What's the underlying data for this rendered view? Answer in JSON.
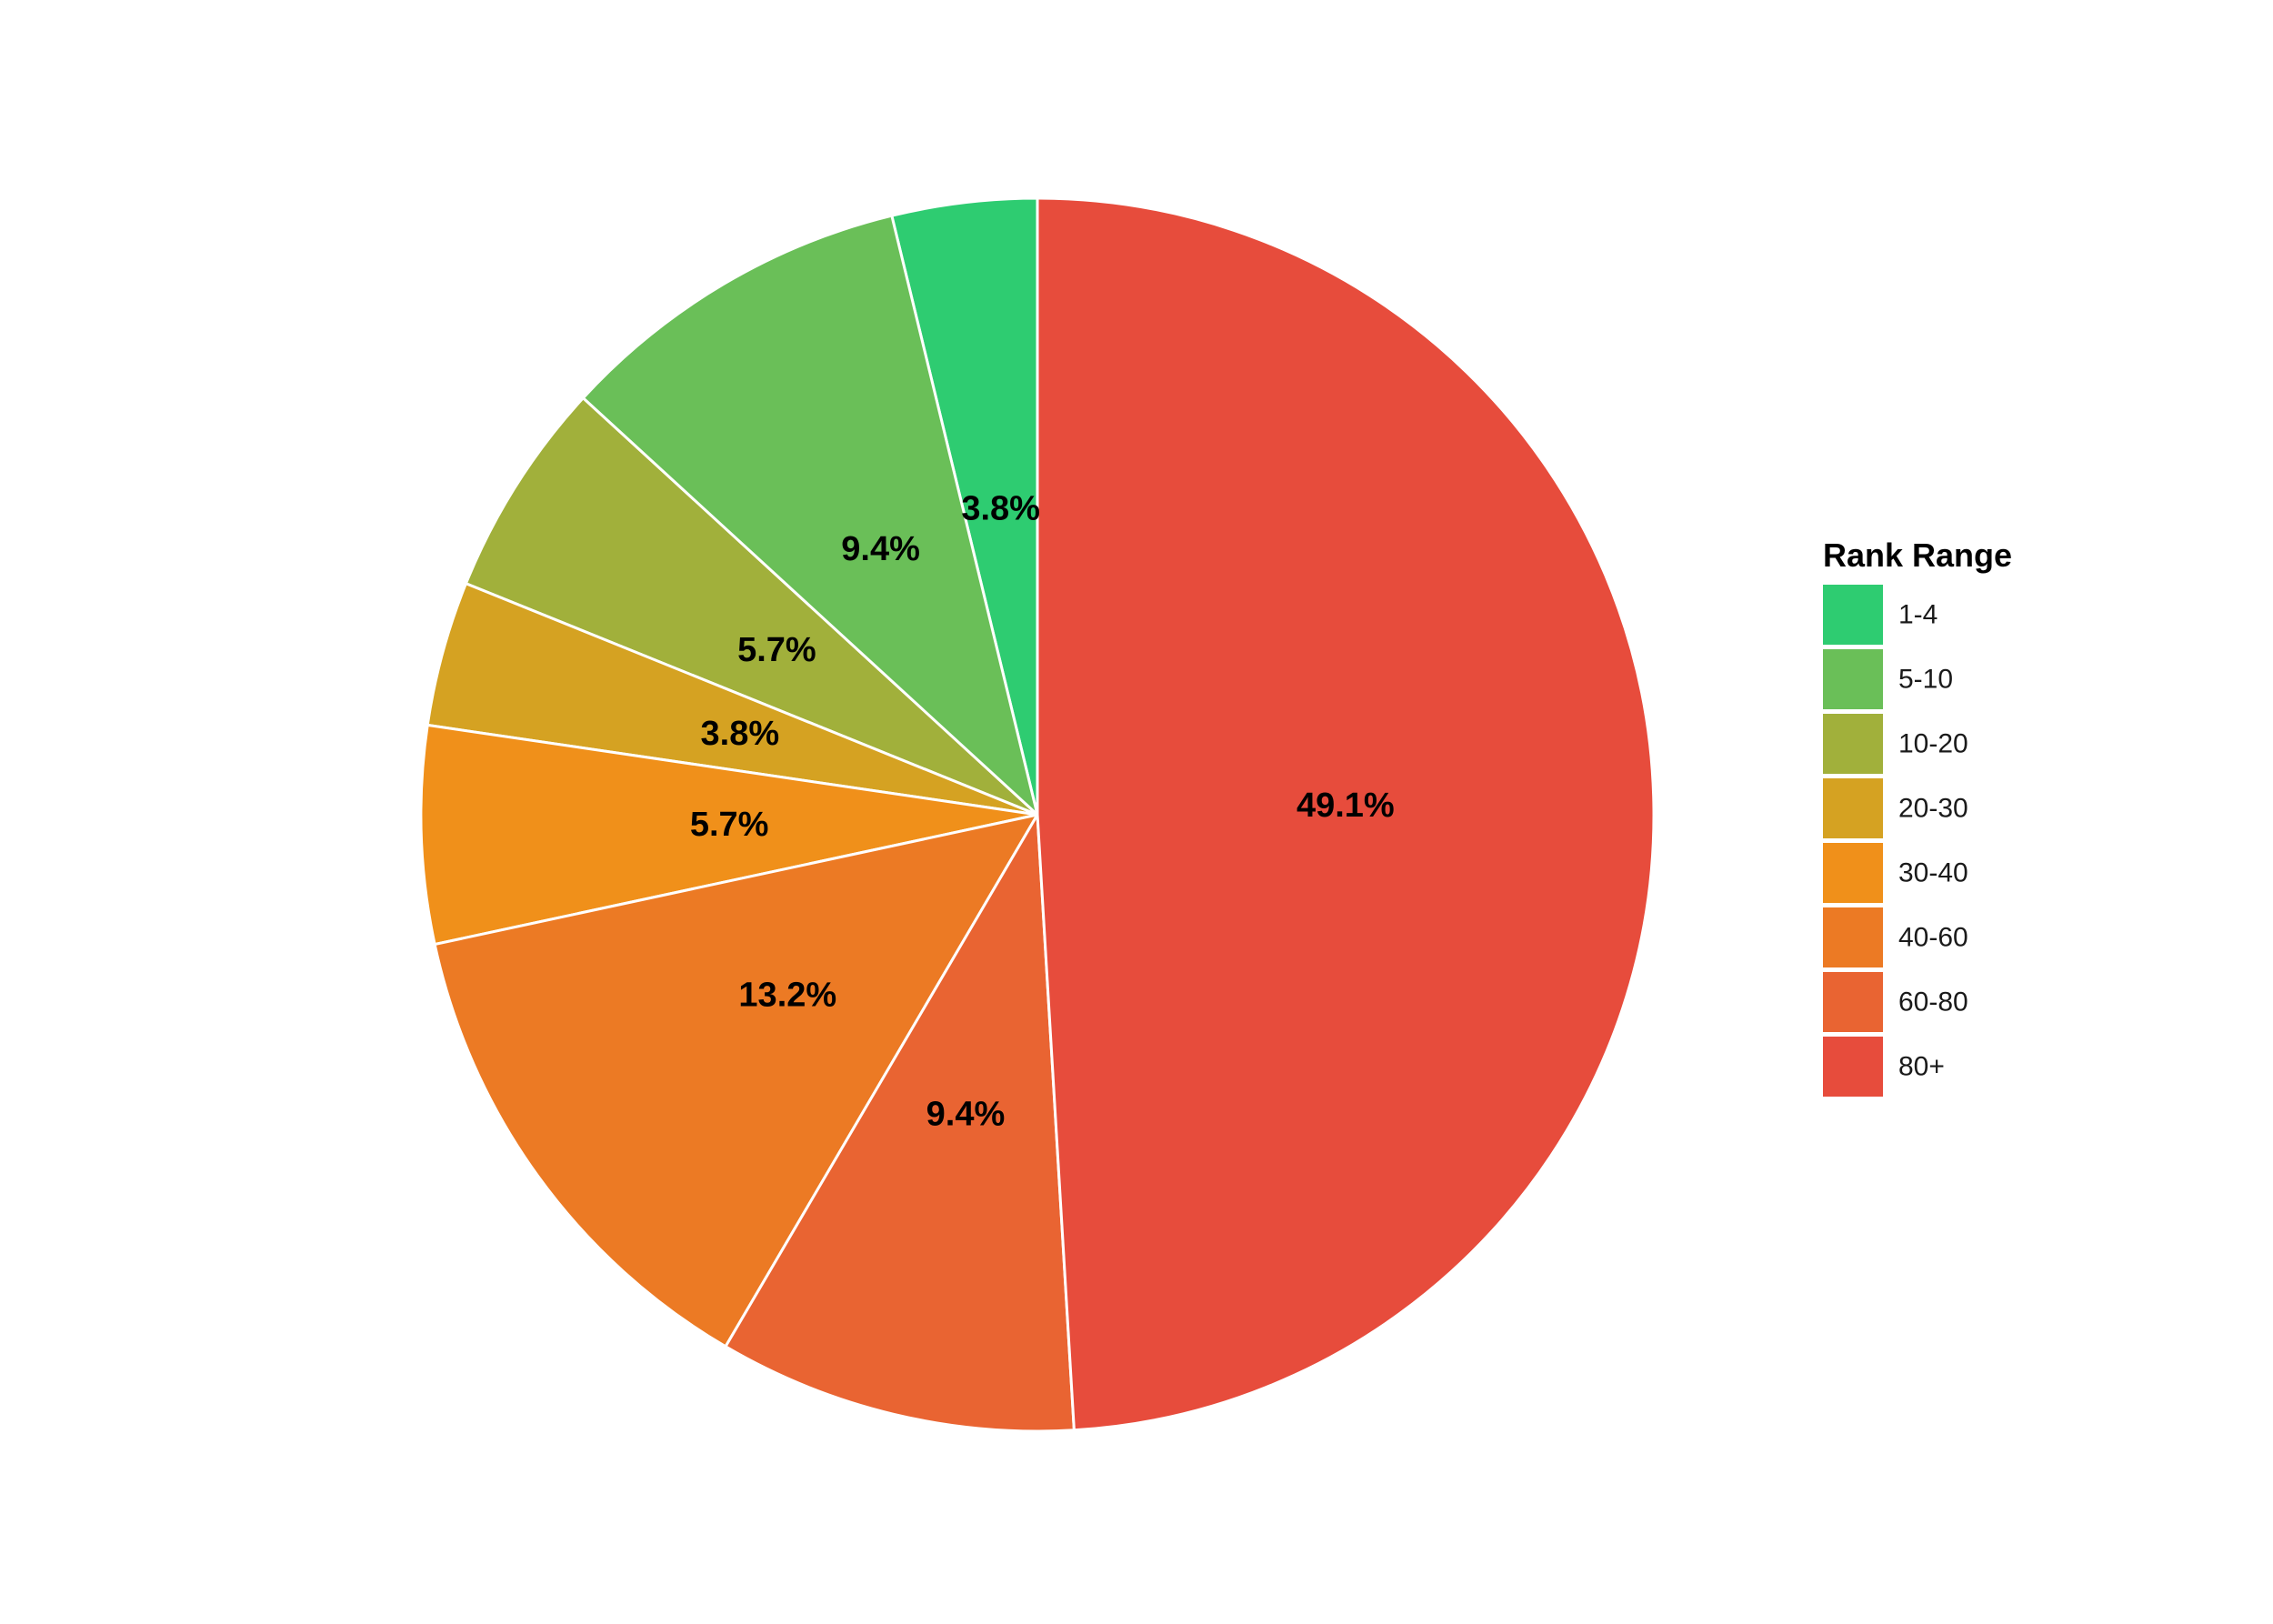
{
  "chart_data": {
    "type": "pie",
    "legend_title": "Rank Range",
    "legend_position": "right",
    "start_angle": "12 o'clock",
    "direction": "counterclockwise from 12 o'clock, 80+ clockwise",
    "slices": [
      {
        "category": "1-4",
        "percent": 3.8,
        "label": "3.8%",
        "color": "#2ECC71"
      },
      {
        "category": "5-10",
        "percent": 9.4,
        "label": "9.4%",
        "color": "#6ABF58"
      },
      {
        "category": "10-20",
        "percent": 5.7,
        "label": "5.7%",
        "color": "#A1B03B"
      },
      {
        "category": "20-30",
        "percent": 3.8,
        "label": "3.8%",
        "color": "#D5A222"
      },
      {
        "category": "30-40",
        "percent": 5.7,
        "label": "5.7%",
        "color": "#F0901A"
      },
      {
        "category": "40-60",
        "percent": 13.2,
        "label": "13.2%",
        "color": "#EC7A24"
      },
      {
        "category": "60-80",
        "percent": 9.4,
        "label": "9.4%",
        "color": "#E96432"
      },
      {
        "category": "80+",
        "percent": 49.1,
        "label": "49.1%",
        "color": "#E74C3C"
      }
    ]
  }
}
